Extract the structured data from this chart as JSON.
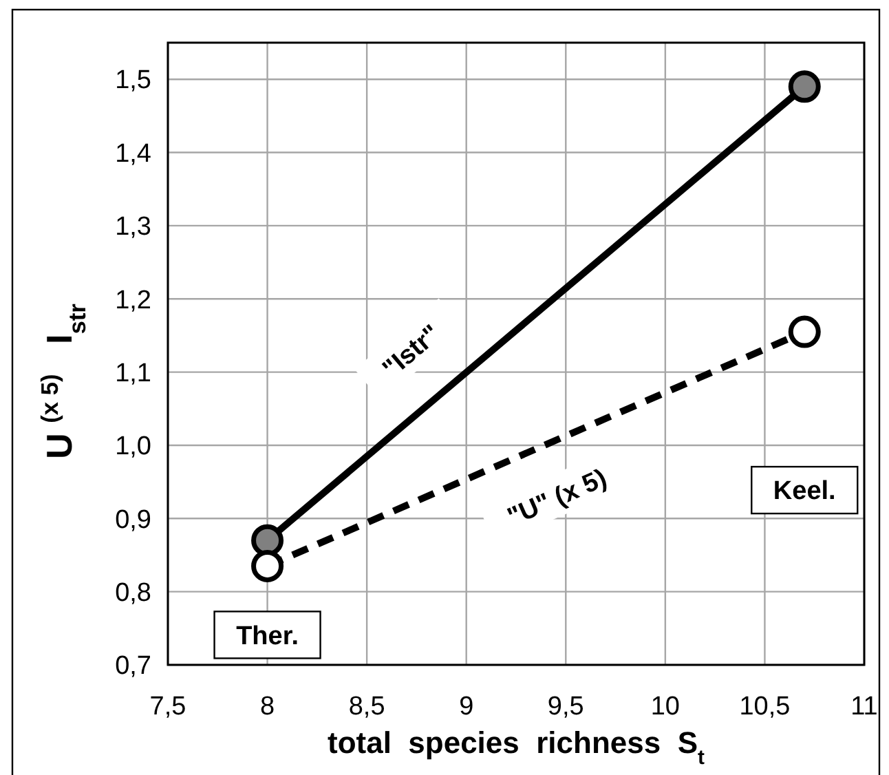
{
  "chart_data": {
    "type": "line",
    "xlabel": "total  species  richness  S$_{t}$",
    "ylabel": "U $^{(x 5)}$   I$_{str}$",
    "xlim": [
      7.5,
      11
    ],
    "xticks": [
      {
        "value": 7.5,
        "label": "7,5"
      },
      8,
      {
        "value": 8.5,
        "label": "8,5"
      },
      9,
      {
        "value": 9.5,
        "label": "9,5"
      },
      10,
      {
        "value": 10.5,
        "label": "10,5"
      },
      11
    ],
    "ylim": [
      0.7,
      1.55
    ],
    "yticks": [
      {
        "value": 0.7,
        "label": "0,7"
      },
      {
        "value": 0.8,
        "label": "0,8"
      },
      {
        "value": 0.9,
        "label": "0,9"
      },
      {
        "value": 1.0,
        "label": "1,0"
      },
      {
        "value": 1.1,
        "label": "1,1"
      },
      {
        "value": 1.2,
        "label": "1,2"
      },
      {
        "value": 1.3,
        "label": "1,3"
      },
      {
        "value": 1.4,
        "label": "1,4"
      },
      {
        "value": 1.5,
        "label": "1,5"
      }
    ],
    "grid": true,
    "marker": "circle",
    "x": [
      8,
      10.7
    ],
    "series": [
      {
        "color": "#000000",
        "line_style": "solid",
        "values": [
          0.87,
          1.49
        ]
      },
      {
        "color": "#000000",
        "line_style": "dashed",
        "values": [
          0.835,
          1.155
        ]
      }
    ],
    "annotations": [
      "\"Istr\"",
      "\"U\" (x 5)",
      "Ther.",
      "Keel."
    ]
  }
}
